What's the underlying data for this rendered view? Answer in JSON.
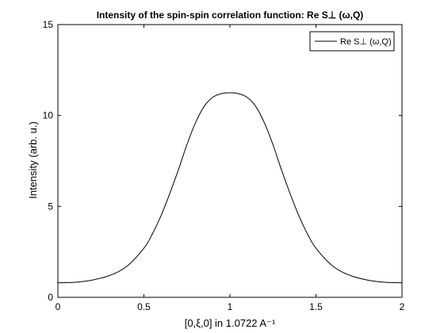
{
  "chart_data": {
    "type": "line",
    "title": "Intensity of the spin-spin correlation function: Re S⊥ (ω,Q)",
    "xlabel": "[0,ξ,0] in 1.0722 A⁻¹",
    "ylabel": "Intensity (arb. u.)",
    "xlim": [
      0,
      2
    ],
    "ylim": [
      0,
      15
    ],
    "xticks": [
      0,
      0.5,
      1,
      1.5,
      2
    ],
    "xtick_labels": [
      "0",
      "0.5",
      "1",
      "1.5",
      "2"
    ],
    "yticks": [
      0,
      5,
      10,
      15
    ],
    "ytick_labels": [
      "0",
      "5",
      "10",
      "15"
    ],
    "grid": false,
    "legend_position": "top-right",
    "series": [
      {
        "name": "Re S⊥ (ω,Q)",
        "color": "#000000",
        "x": [
          0,
          0.1,
          0.2,
          0.3,
          0.4,
          0.5,
          0.55,
          0.6,
          0.65,
          0.7,
          0.75,
          0.8,
          0.85,
          0.9,
          0.95,
          1.0,
          1.05,
          1.1,
          1.15,
          1.2,
          1.25,
          1.3,
          1.35,
          1.4,
          1.45,
          1.5,
          1.6,
          1.7,
          1.8,
          1.9,
          2.0
        ],
        "y": [
          0.8,
          0.83,
          0.95,
          1.2,
          1.7,
          2.7,
          3.5,
          4.5,
          5.7,
          7.0,
          8.4,
          9.6,
          10.5,
          11.0,
          11.2,
          11.25,
          11.2,
          11.0,
          10.5,
          9.6,
          8.4,
          7.0,
          5.7,
          4.5,
          3.5,
          2.7,
          1.7,
          1.2,
          0.95,
          0.83,
          0.8
        ]
      }
    ]
  }
}
